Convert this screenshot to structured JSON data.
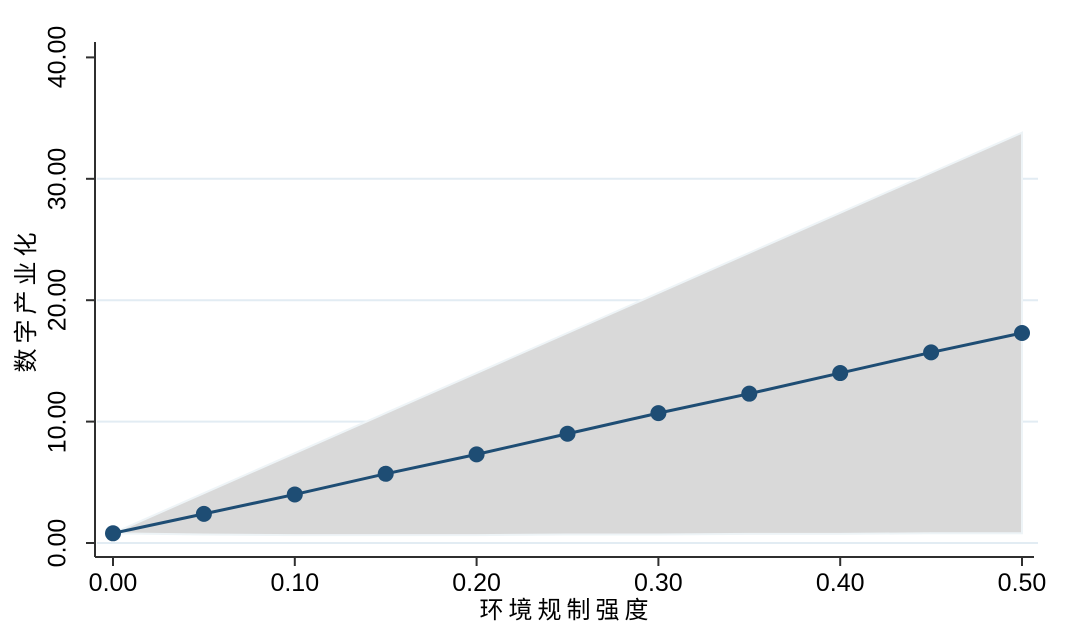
{
  "page": {
    "background": "#ffffff"
  },
  "colors": {
    "line": "#1e4d74",
    "marker": "#1e4d74",
    "ci_band": "#d9d9d9",
    "ci_band_edge": "#eef4f7",
    "gridline": "#e2ecf3",
    "axis": "#2f2f2f",
    "text": "#000000"
  },
  "chart_data": {
    "type": "line",
    "title": "",
    "xlabel": "环境规制强度",
    "ylabel": "数字产业化",
    "x": [
      0.0,
      0.05,
      0.1,
      0.15,
      0.2,
      0.25,
      0.3,
      0.35,
      0.4,
      0.45,
      0.5
    ],
    "y": [
      0.8,
      2.4,
      4.0,
      5.7,
      7.3,
      9.0,
      10.7,
      12.3,
      14.0,
      15.7,
      17.3
    ],
    "ci_upper": [
      0.8,
      4.1,
      7.4,
      10.7,
      14.0,
      17.3,
      20.6,
      23.9,
      27.2,
      30.5,
      33.8
    ],
    "ci_lower": [
      0.8,
      0.7,
      0.65,
      0.65,
      0.65,
      0.7,
      0.7,
      0.75,
      0.75,
      0.8,
      0.8
    ],
    "xticks": {
      "values": [
        0,
        0.1,
        0.2,
        0.3,
        0.4,
        0.5
      ],
      "labels": [
        "0.00",
        "0.10",
        "0.20",
        "0.30",
        "0.40",
        "0.50"
      ]
    },
    "yticks": {
      "values": [
        0,
        10,
        20,
        30,
        40
      ],
      "labels": [
        "0.00",
        "10.00",
        "20.00",
        "30.00",
        "40.00"
      ]
    },
    "grid_values": [
      0,
      10,
      20,
      30
    ],
    "xlim": [
      0,
      0.5
    ],
    "ylim": [
      0,
      40
    ],
    "grid": "horizontal",
    "legend": "none",
    "marker": "circle"
  }
}
